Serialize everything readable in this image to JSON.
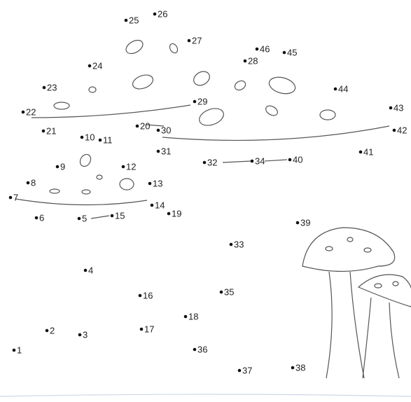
{
  "dots": [
    1,
    2,
    3,
    4,
    5,
    6,
    7,
    8,
    9,
    10,
    11,
    12,
    13,
    14,
    15,
    16,
    17,
    18,
    19,
    20,
    21,
    22,
    23,
    24,
    25,
    26,
    27,
    28,
    29,
    30,
    31,
    32,
    33,
    34,
    35,
    36,
    37,
    38,
    39,
    40,
    41,
    42,
    43,
    44,
    45,
    46
  ]
}
